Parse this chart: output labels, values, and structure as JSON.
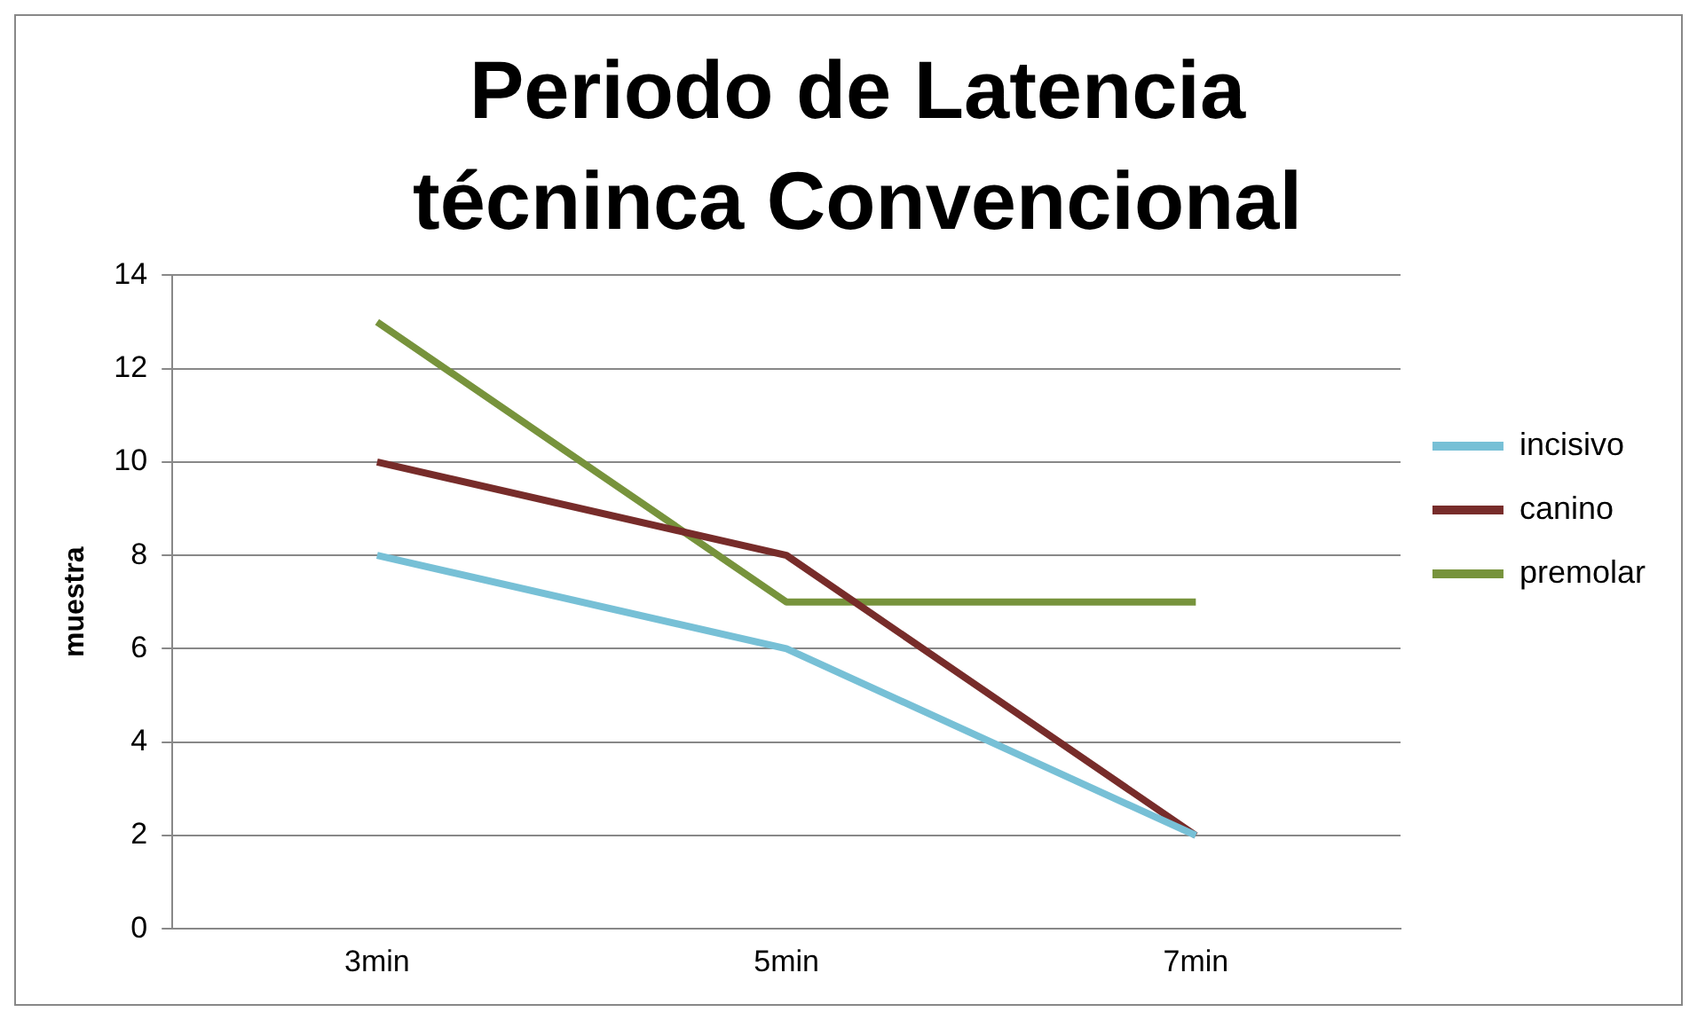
{
  "chart_data": {
    "type": "line",
    "title": "Periodo de Latencia técninca Convencional",
    "ylabel": "muestra",
    "categories": [
      "3min",
      "5min",
      "7min"
    ],
    "series": [
      {
        "name": "incisivo",
        "color": "#77c0d6",
        "values": [
          8,
          6,
          2
        ]
      },
      {
        "name": "canino",
        "color": "#772c2a",
        "values": [
          10,
          8,
          2
        ]
      },
      {
        "name": "premolar",
        "color": "#77933c",
        "values": [
          13,
          7,
          7
        ]
      }
    ],
    "ylim": [
      0,
      14
    ],
    "yticks": [
      0,
      2,
      4,
      6,
      8,
      10,
      12,
      14
    ],
    "grid": "y",
    "legend": "right",
    "marker": "none",
    "line_style": "solid"
  }
}
